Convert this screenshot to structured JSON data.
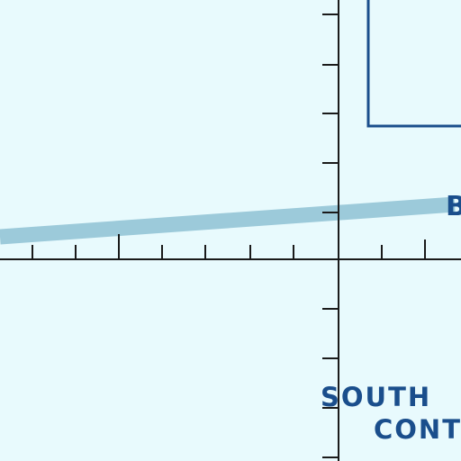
{
  "map": {
    "background_color": "#e8fafd",
    "line_color": "#1a1a1a",
    "label_color": "#1a4e8c",
    "route_color": "#9ccada",
    "boundary_color": "#1a4e8c",
    "labels": {
      "south": "SOUTH",
      "cont": "CONT",
      "route": "B"
    }
  }
}
